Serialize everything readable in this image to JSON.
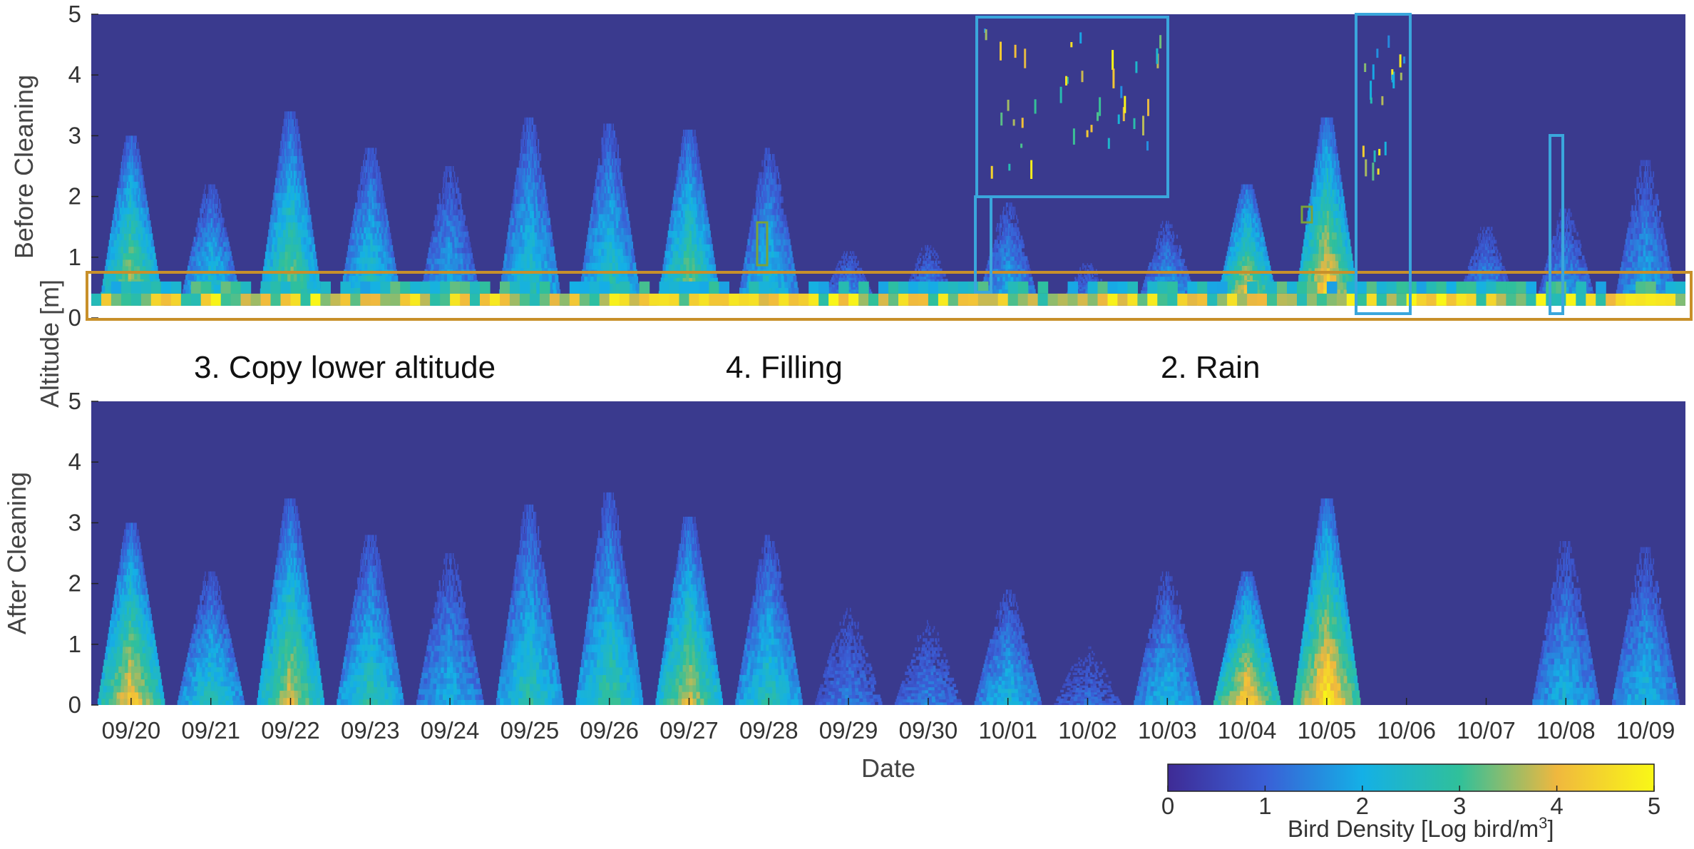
{
  "chart_data": [
    {
      "type": "heatmap",
      "panel_label": "Before Cleaning",
      "x_categories": [
        "09/20",
        "09/21",
        "09/22",
        "09/23",
        "09/24",
        "09/25",
        "09/26",
        "09/27",
        "09/28",
        "09/29",
        "09/30",
        "10/01",
        "10/02",
        "10/03",
        "10/04",
        "10/05",
        "10/06",
        "10/07",
        "10/08",
        "10/09"
      ],
      "ylim": [
        0,
        5
      ],
      "yticks": [
        "0",
        "1",
        "2",
        "3",
        "4",
        "5"
      ],
      "value_range": [
        0,
        5
      ],
      "nightly_profiles": [
        {
          "date": "09/20",
          "top": 3.0,
          "peak": 4.2
        },
        {
          "date": "09/21",
          "top": 2.2,
          "peak": 3.0
        },
        {
          "date": "09/22",
          "top": 3.4,
          "peak": 3.9
        },
        {
          "date": "09/23",
          "top": 2.8,
          "peak": 3.1
        },
        {
          "date": "09/24",
          "top": 2.5,
          "peak": 2.4
        },
        {
          "date": "09/25",
          "top": 3.3,
          "peak": 3.0
        },
        {
          "date": "09/26",
          "top": 3.2,
          "peak": 3.1
        },
        {
          "date": "09/27",
          "top": 3.1,
          "peak": 3.9
        },
        {
          "date": "09/28",
          "top": 2.8,
          "peak": 2.8
        },
        {
          "date": "09/29",
          "top": 1.1,
          "peak": 2.2
        },
        {
          "date": "09/30",
          "top": 1.2,
          "peak": 2.2
        },
        {
          "date": "10/01",
          "top": 1.9,
          "peak": 2.4
        },
        {
          "date": "10/02",
          "top": 0.9,
          "peak": 2.0
        },
        {
          "date": "10/03",
          "top": 1.6,
          "peak": 2.4
        },
        {
          "date": "10/04",
          "top": 2.2,
          "peak": 4.6
        },
        {
          "date": "10/05",
          "top": 3.3,
          "peak": 4.9
        },
        {
          "date": "10/06",
          "top": 0.4,
          "peak": 1.8
        },
        {
          "date": "10/07",
          "top": 1.5,
          "peak": 2.2
        },
        {
          "date": "10/08",
          "top": 1.8,
          "peak": 2.2
        },
        {
          "date": "10/09",
          "top": 2.6,
          "peak": 2.3
        }
      ]
    },
    {
      "type": "heatmap",
      "panel_label": "After Cleaning",
      "x_categories": [
        "09/20",
        "09/21",
        "09/22",
        "09/23",
        "09/24",
        "09/25",
        "09/26",
        "09/27",
        "09/28",
        "09/29",
        "09/30",
        "10/01",
        "10/02",
        "10/03",
        "10/04",
        "10/05",
        "10/06",
        "10/07",
        "10/08",
        "10/09"
      ],
      "xlabel": "Date",
      "ylim": [
        0,
        5
      ],
      "yticks": [
        "0",
        "1",
        "2",
        "3",
        "4",
        "5"
      ],
      "value_range": [
        0,
        5
      ],
      "nightly_profiles": [
        {
          "date": "09/20",
          "top": 3.0,
          "peak": 4.3
        },
        {
          "date": "09/21",
          "top": 2.2,
          "peak": 2.8
        },
        {
          "date": "09/22",
          "top": 3.4,
          "peak": 3.9
        },
        {
          "date": "09/23",
          "top": 2.8,
          "peak": 2.9
        },
        {
          "date": "09/24",
          "top": 2.5,
          "peak": 2.2
        },
        {
          "date": "09/25",
          "top": 3.3,
          "peak": 2.9
        },
        {
          "date": "09/26",
          "top": 3.5,
          "peak": 3.1
        },
        {
          "date": "09/27",
          "top": 3.1,
          "peak": 3.9
        },
        {
          "date": "09/28",
          "top": 2.8,
          "peak": 2.8
        },
        {
          "date": "09/29",
          "top": 1.6,
          "peak": 1.4
        },
        {
          "date": "09/30",
          "top": 1.4,
          "peak": 1.5
        },
        {
          "date": "10/01",
          "top": 1.9,
          "peak": 2.3
        },
        {
          "date": "10/02",
          "top": 1.0,
          "peak": 1.2
        },
        {
          "date": "10/03",
          "top": 2.2,
          "peak": 2.3
        },
        {
          "date": "10/04",
          "top": 2.2,
          "peak": 4.5
        },
        {
          "date": "10/05",
          "top": 3.4,
          "peak": 4.9
        },
        {
          "date": "10/06",
          "top": 0.0,
          "peak": 0.0
        },
        {
          "date": "10/07",
          "top": 0.0,
          "peak": 0.0
        },
        {
          "date": "10/08",
          "top": 2.7,
          "peak": 2.2
        },
        {
          "date": "10/09",
          "top": 2.6,
          "peak": 2.3
        }
      ]
    }
  ],
  "labels": {
    "top_panel": "Before Cleaning",
    "bottom_panel": "After Cleaning",
    "shared_ylabel": "Altitude [m]",
    "xlabel": "Date",
    "annotation_copy": "3. Copy lower altitude",
    "annotation_filling": "4. Filling",
    "annotation_rain": "2. Rain"
  },
  "colorbar": {
    "label_prefix": "Bird Density [Log bird/m",
    "label_sup": "3",
    "label_suffix": "]",
    "ticks": [
      "0",
      "1",
      "2",
      "3",
      "4",
      "5"
    ],
    "range": [
      0,
      5
    ]
  },
  "colors": {
    "background_value": "#3a3a8e",
    "copy_box": "#c8902a",
    "rain_box": "#3aa6dc",
    "fill_box": "#7aa33a"
  }
}
